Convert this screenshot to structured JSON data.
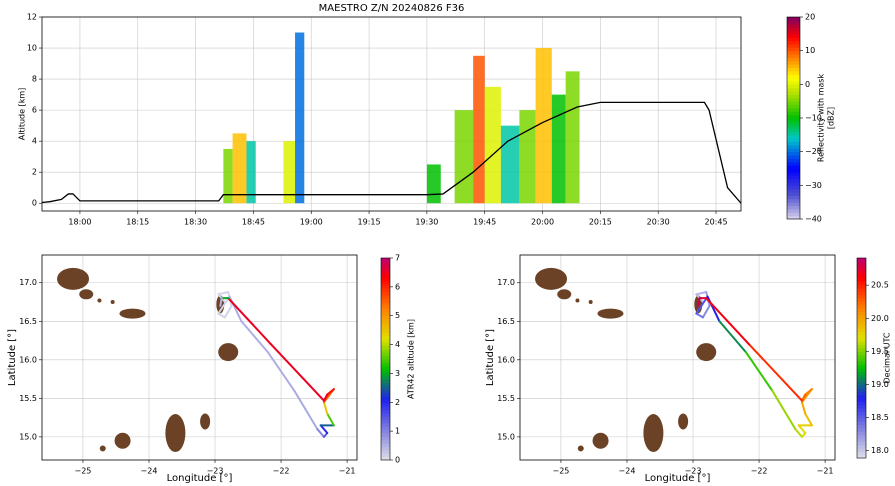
{
  "chart_data": [
    {
      "type": "time-height",
      "title": "MAESTRO Z/N 20240826 F36",
      "ylabel": "Altitude [km]",
      "xlim": [
        17.836,
        20.858
      ],
      "ylim": [
        -0.5,
        12
      ],
      "xticks": [
        {
          "value": 18.0,
          "label": "18:00"
        },
        {
          "value": 18.25,
          "label": "18:15"
        },
        {
          "value": 18.5,
          "label": "18:30"
        },
        {
          "value": 18.75,
          "label": "18:45"
        },
        {
          "value": 19.0,
          "label": "19:00"
        },
        {
          "value": 19.25,
          "label": "19:15"
        },
        {
          "value": 19.5,
          "label": "19:30"
        },
        {
          "value": 19.75,
          "label": "19:45"
        },
        {
          "value": 20.0,
          "label": "20:00"
        },
        {
          "value": 20.25,
          "label": "20:15"
        },
        {
          "value": 20.5,
          "label": "20:30"
        },
        {
          "value": 20.75,
          "label": "20:45"
        }
      ],
      "yticks": [
        0,
        2,
        4,
        6,
        8,
        10,
        12
      ],
      "grid": true,
      "flight": {
        "color": "#000000",
        "x": [
          17.836,
          17.87,
          17.92,
          17.95,
          17.97,
          18.0,
          18.6,
          18.62,
          19.5,
          19.57,
          19.7,
          19.85,
          20.0,
          20.15,
          20.25,
          20.7,
          20.72,
          20.8,
          20.858
        ],
        "y": [
          0.05,
          0.1,
          0.25,
          0.6,
          0.6,
          0.15,
          0.15,
          0.55,
          0.55,
          0.6,
          2.0,
          4.0,
          5.2,
          6.2,
          6.5,
          6.5,
          6.0,
          1.0,
          0
        ]
      },
      "echoes": {
        "start": [
          18.62,
          18.66,
          18.72,
          18.88,
          18.93,
          19.5,
          19.62,
          19.7,
          19.75,
          19.82,
          19.9,
          19.97,
          20.04,
          20.1
        ],
        "end": [
          18.66,
          18.72,
          18.76,
          18.93,
          18.97,
          19.56,
          19.7,
          19.75,
          19.82,
          19.9,
          19.97,
          20.04,
          20.1,
          20.16
        ],
        "top": [
          3.5,
          4.5,
          4.0,
          4.0,
          11.0,
          2.5,
          6.0,
          9.5,
          7.5,
          5.0,
          6.0,
          10.0,
          7.0,
          8.5
        ],
        "dbz": [
          -5,
          5,
          -15,
          0,
          -20,
          -10,
          -5,
          10,
          0,
          -15,
          -5,
          5,
          -10,
          -5
        ]
      },
      "colorbar": {
        "label": [
          "Reflectivity with mask",
          "[dBZ]"
        ],
        "clim": [
          -40,
          20
        ],
        "ticks": [
          {
            "value": -40,
            "label": "−40"
          },
          {
            "value": -30,
            "label": "−30"
          },
          {
            "value": -20,
            "label": "−20"
          },
          {
            "value": -10,
            "label": "−10"
          },
          0,
          10,
          20
        ]
      }
    },
    {
      "type": "track-map",
      "xlabel": "Longitude [°]",
      "ylabel": "Latitude [°]",
      "xlim": [
        -25.62,
        -20.85
      ],
      "ylim": [
        14.7,
        17.36
      ],
      "xticks": [
        {
          "value": -25,
          "label": "−25"
        },
        {
          "value": -24,
          "label": "−24"
        },
        {
          "value": -23,
          "label": "−23"
        },
        {
          "value": -22,
          "label": "−22"
        },
        {
          "value": -21,
          "label": "−21"
        }
      ],
      "yticks": [
        {
          "value": 15.0,
          "label": "15.0"
        },
        {
          "value": 15.5,
          "label": "15.5"
        },
        {
          "value": 16.0,
          "label": "16.0"
        },
        {
          "value": 16.5,
          "label": "16.5"
        },
        {
          "value": 17.0,
          "label": "17.0"
        }
      ],
      "grid": true,
      "lon": [
        -22.85,
        -22.95,
        -22.8,
        -22.75,
        -22.85,
        -22.95,
        -22.78,
        -22.6,
        -22.2,
        -21.8,
        -21.45,
        -21.35,
        -21.3,
        -21.4,
        -21.2,
        -21.3,
        -21.35,
        -21.2,
        -21.3,
        -21.35,
        -22.15,
        -22.8,
        -22.9,
        -22.92
      ],
      "lat": [
        16.75,
        16.85,
        16.88,
        16.7,
        16.55,
        16.6,
        16.82,
        16.5,
        16.1,
        15.6,
        15.1,
        15.0,
        15.05,
        15.15,
        15.15,
        15.3,
        15.45,
        15.62,
        15.55,
        15.47,
        16.2,
        16.8,
        16.8,
        16.7
      ],
      "color_values": [
        0.2,
        0.15,
        0.15,
        0.15,
        0.15,
        0.15,
        0.15,
        0.55,
        0.55,
        0.55,
        0.6,
        1.0,
        1.5,
        2.0,
        2.5,
        3.5,
        4.5,
        5.5,
        6.2,
        6.5,
        6.5,
        6.5,
        3.0,
        0.5
      ],
      "colorbar": {
        "label": "ATR42 altitude [km]",
        "clim": [
          0,
          7
        ],
        "ticks": [
          0,
          1,
          2,
          3,
          4,
          5,
          6,
          7
        ]
      }
    },
    {
      "type": "track-map",
      "xlabel": "Longitude [°]",
      "ylabel": "Latitude [°]",
      "xlim": [
        -25.62,
        -20.85
      ],
      "ylim": [
        14.7,
        17.36
      ],
      "xticks": [
        {
          "value": -25,
          "label": "−25"
        },
        {
          "value": -24,
          "label": "−24"
        },
        {
          "value": -23,
          "label": "−23"
        },
        {
          "value": -22,
          "label": "−22"
        },
        {
          "value": -21,
          "label": "−21"
        }
      ],
      "yticks": [
        {
          "value": 15.0,
          "label": "15.0"
        },
        {
          "value": 15.5,
          "label": "15.5"
        },
        {
          "value": 16.0,
          "label": "16.0"
        },
        {
          "value": 16.5,
          "label": "16.5"
        },
        {
          "value": 17.0,
          "label": "17.0"
        }
      ],
      "grid": true,
      "lon": [
        -22.85,
        -22.95,
        -22.8,
        -22.75,
        -22.85,
        -22.95,
        -22.78,
        -22.6,
        -22.2,
        -21.8,
        -21.45,
        -21.35,
        -21.3,
        -21.4,
        -21.2,
        -21.3,
        -21.35,
        -21.2,
        -21.3,
        -21.35,
        -22.15,
        -22.8,
        -22.9,
        -22.92
      ],
      "lat": [
        16.75,
        16.85,
        16.88,
        16.7,
        16.55,
        16.6,
        16.82,
        16.5,
        16.1,
        15.6,
        15.1,
        15.0,
        15.05,
        15.15,
        15.15,
        15.3,
        15.45,
        15.62,
        15.55,
        15.47,
        16.2,
        16.8,
        16.8,
        16.7
      ],
      "color_values": [
        18.0,
        18.05,
        18.1,
        18.2,
        18.3,
        18.4,
        18.55,
        18.8,
        19.1,
        19.35,
        19.55,
        19.62,
        19.68,
        19.72,
        19.78,
        19.85,
        19.95,
        20.05,
        20.15,
        20.25,
        20.45,
        20.65,
        20.75,
        20.8
      ],
      "colorbar": {
        "label": "Decimal UTC",
        "clim": [
          17.89,
          20.91
        ],
        "ticks": [
          {
            "value": 18.0,
            "label": "18.0"
          },
          {
            "value": 18.5,
            "label": "18.5"
          },
          {
            "value": 19.0,
            "label": "19.0"
          },
          {
            "value": 19.5,
            "label": "19.5"
          },
          {
            "value": 20.0,
            "label": "20.0"
          },
          {
            "value": 20.5,
            "label": "20.5"
          }
        ]
      }
    }
  ]
}
